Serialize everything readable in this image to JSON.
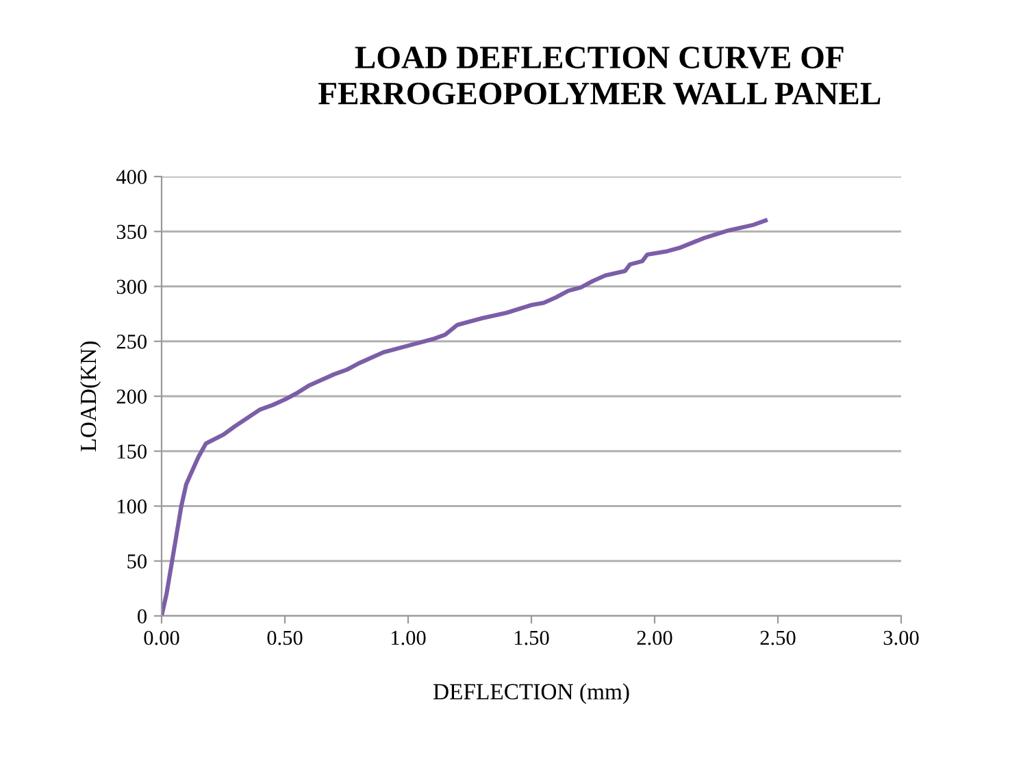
{
  "chart_data": {
    "type": "line",
    "title": "LOAD DEFLECTION CURVE OF\nFERROGEOPOLYMER WALL PANEL",
    "xlabel": "DEFLECTION (mm)",
    "ylabel": "LOAD(KN)",
    "x": [
      0,
      0.02,
      0.05,
      0.08,
      0.1,
      0.12,
      0.15,
      0.18,
      0.25,
      0.3,
      0.4,
      0.45,
      0.5,
      0.55,
      0.6,
      0.7,
      0.75,
      0.8,
      0.9,
      1.0,
      1.1,
      1.15,
      1.2,
      1.3,
      1.4,
      1.5,
      1.55,
      1.6,
      1.65,
      1.7,
      1.75,
      1.8,
      1.88,
      1.9,
      1.95,
      1.97,
      2.05,
      2.1,
      2.2,
      2.3,
      2.4,
      2.45
    ],
    "series": [
      {
        "color": "#7b5ea7",
        "values": [
          0,
          20,
          60,
          100,
          120,
          130,
          145,
          157,
          165,
          173,
          188,
          192,
          197,
          203,
          210,
          220,
          224,
          230,
          240,
          246,
          252,
          256,
          265,
          271,
          276,
          283,
          285,
          290,
          296,
          299,
          305,
          310,
          314,
          320,
          323,
          329,
          332,
          335,
          344,
          351,
          356,
          360
        ]
      }
    ],
    "xlim": [
      0,
      3
    ],
    "xticks": [
      {
        "value": 0,
        "label": "0.00"
      },
      {
        "value": 0.5,
        "label": "0.50"
      },
      {
        "value": 1,
        "label": "1.00"
      },
      {
        "value": 1.5,
        "label": "1.50"
      },
      {
        "value": 2,
        "label": "2.00"
      },
      {
        "value": 2.5,
        "label": "2.50"
      },
      {
        "value": 3,
        "label": "3.00"
      }
    ],
    "ylim": [
      0,
      400
    ],
    "yticks": [
      0,
      50,
      100,
      150,
      200,
      250,
      300,
      350,
      400
    ],
    "grid": "y",
    "marker": "none",
    "line_style": "solid"
  }
}
